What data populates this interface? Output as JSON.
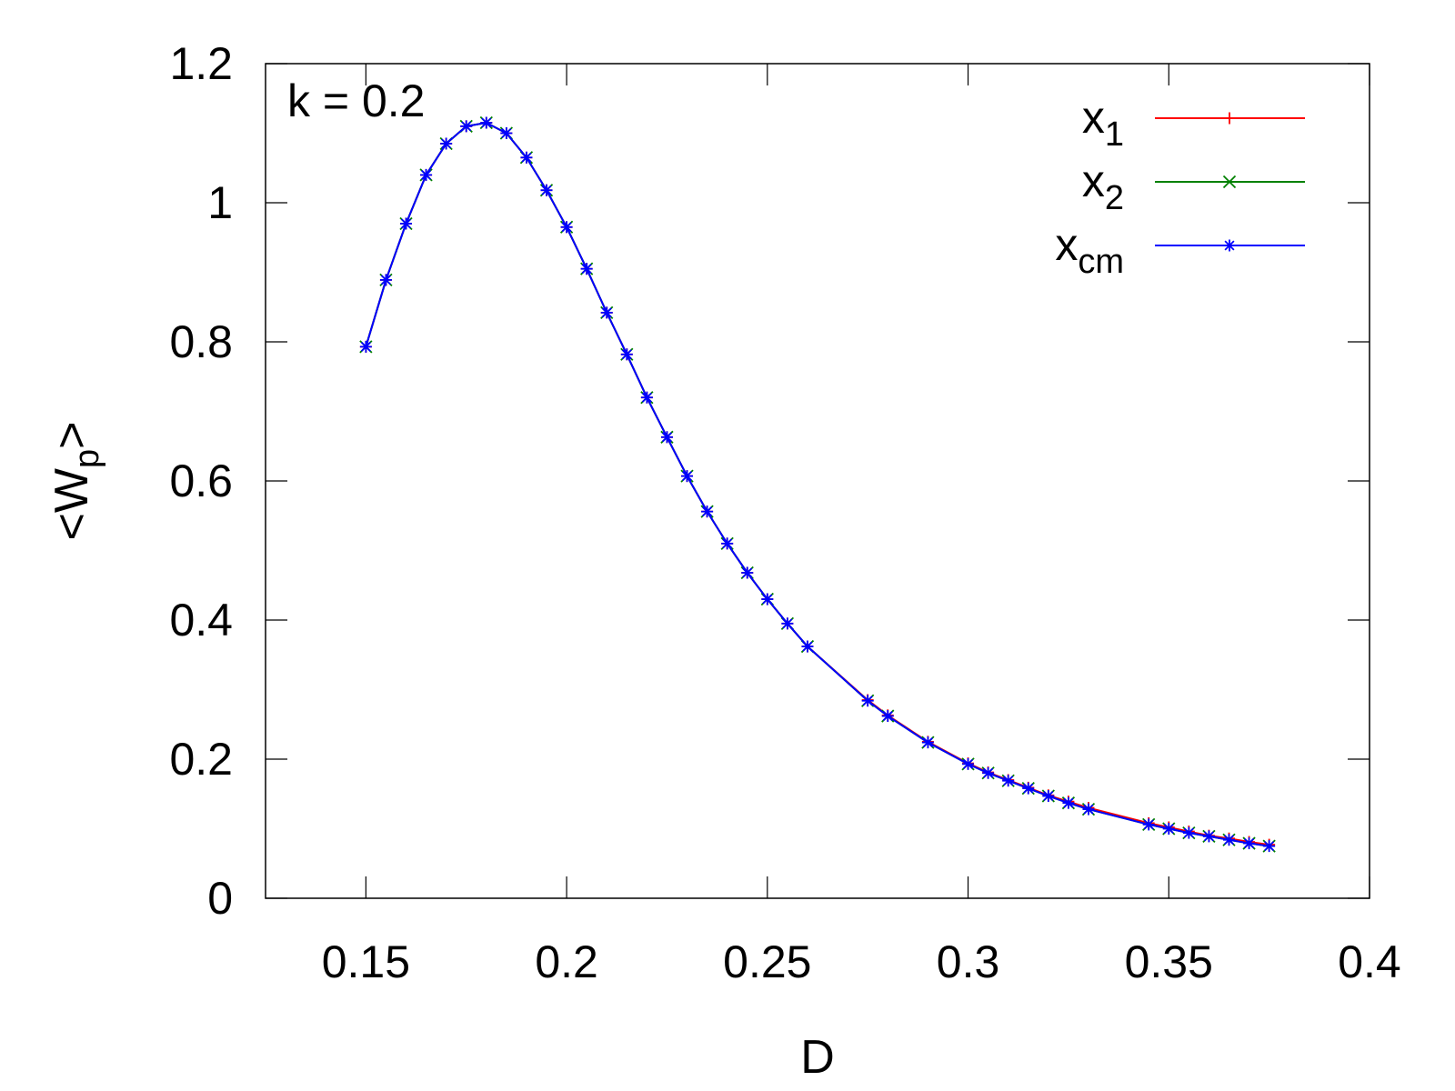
{
  "chart_data": {
    "type": "line",
    "xlabel": "D",
    "ylabel": {
      "main": "<W",
      "sub": "p",
      "end": ">"
    },
    "xlim": [
      0.125,
      0.4
    ],
    "ylim": [
      0,
      1.2
    ],
    "xticks": [
      {
        "value": 0.15,
        "label": "0.15"
      },
      {
        "value": 0.2,
        "label": "0.2"
      },
      {
        "value": 0.25,
        "label": "0.25"
      },
      {
        "value": 0.3,
        "label": "0.3"
      },
      {
        "value": 0.35,
        "label": "0.35"
      },
      {
        "value": 0.4,
        "label": "0.4"
      }
    ],
    "yticks": [
      {
        "value": 0,
        "label": "0"
      },
      {
        "value": 0.2,
        "label": "0.2"
      },
      {
        "value": 0.4,
        "label": "0.4"
      },
      {
        "value": 0.6,
        "label": "0.6"
      },
      {
        "value": 0.8,
        "label": "0.8"
      },
      {
        "value": 1.0,
        "label": "1"
      },
      {
        "value": 1.2,
        "label": "1.2"
      }
    ],
    "grid": false,
    "legend_position": "top-right",
    "annotation": "k = 0.2",
    "x": [
      0.15,
      0.155,
      0.16,
      0.165,
      0.17,
      0.175,
      0.18,
      0.185,
      0.19,
      0.195,
      0.2,
      0.205,
      0.21,
      0.215,
      0.22,
      0.225,
      0.23,
      0.235,
      0.24,
      0.245,
      0.25,
      0.255,
      0.26,
      0.275,
      0.28,
      0.29,
      0.3,
      0.305,
      0.31,
      0.315,
      0.32,
      0.325,
      0.33,
      0.345,
      0.35,
      0.355,
      0.36,
      0.365,
      0.37,
      0.375
    ],
    "series": [
      {
        "name": {
          "main": "x",
          "sub": "1"
        },
        "color": "#ff0000",
        "marker": "plus",
        "values": [
          0.793,
          0.889,
          0.97,
          1.04,
          1.085,
          1.11,
          1.115,
          1.1,
          1.065,
          1.018,
          0.965,
          0.905,
          0.842,
          0.782,
          0.72,
          0.663,
          0.607,
          0.556,
          0.51,
          0.468,
          0.43,
          0.395,
          0.362,
          0.285,
          0.263,
          0.225,
          0.194,
          0.181,
          0.17,
          0.159,
          0.148,
          0.139,
          0.13,
          0.108,
          0.102,
          0.096,
          0.09,
          0.086,
          0.081,
          0.077
        ]
      },
      {
        "name": {
          "main": "x",
          "sub": "2"
        },
        "color": "#008000",
        "marker": "cross",
        "values": [
          0.793,
          0.889,
          0.97,
          1.04,
          1.085,
          1.11,
          1.115,
          1.1,
          1.065,
          1.018,
          0.965,
          0.905,
          0.842,
          0.782,
          0.72,
          0.663,
          0.607,
          0.556,
          0.51,
          0.468,
          0.43,
          0.395,
          0.362,
          0.284,
          0.262,
          0.224,
          0.193,
          0.18,
          0.169,
          0.158,
          0.147,
          0.137,
          0.128,
          0.106,
          0.1,
          0.094,
          0.089,
          0.084,
          0.079,
          0.075
        ]
      },
      {
        "name": {
          "main": "x",
          "sub": "cm"
        },
        "color": "#0000ff",
        "marker": "star",
        "values": [
          0.793,
          0.889,
          0.97,
          1.04,
          1.085,
          1.11,
          1.115,
          1.1,
          1.065,
          1.018,
          0.965,
          0.905,
          0.842,
          0.782,
          0.72,
          0.663,
          0.607,
          0.556,
          0.51,
          0.468,
          0.43,
          0.395,
          0.362,
          0.284,
          0.262,
          0.224,
          0.193,
          0.18,
          0.169,
          0.158,
          0.147,
          0.137,
          0.128,
          0.106,
          0.1,
          0.094,
          0.089,
          0.084,
          0.079,
          0.075
        ]
      }
    ]
  }
}
